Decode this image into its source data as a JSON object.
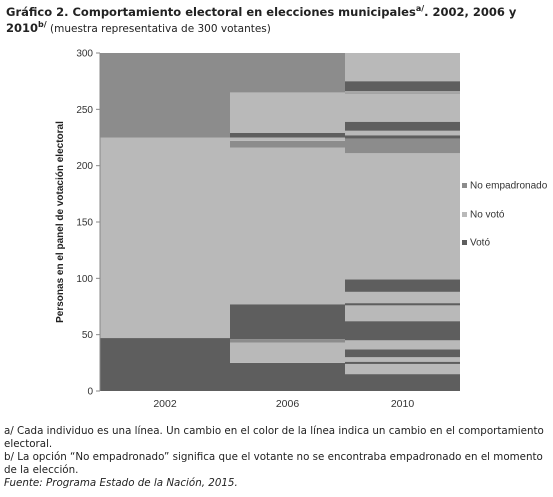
{
  "title": {
    "bold_text": "Gráfico 2. Comportamiento electoral en elecciones municipales",
    "sup_a": "a/",
    "bold_text_2": ". 2002, 2006 y 2010",
    "sup_b": "b/",
    "subtitle": " (muestra representativa de 300 votantes)"
  },
  "notes": {
    "note_a": "a/ Cada individuo es una línea. Un cambio en el color de la línea indica un cambio en el comportamiento electoral.",
    "note_b": "b/ La opción “No empadronado” significa que el votante no se encontraba empadronado en el momento de la elección.",
    "source": "Fuente: Programa Estado de la Nación, 2015."
  },
  "colors": {
    "No empadronado": "#8c8c8c",
    "No votó": "#b9b9b9",
    "Votó": "#5e5e5e"
  },
  "chart_data": {
    "type": "bar",
    "stacked": true,
    "title": "Gráfico 2. Comportamiento electoral en elecciones municipales. 2002, 2006 y 2010",
    "ylabel": "Personas en el panel de votación electoral",
    "ylim": [
      0,
      300
    ],
    "yticks": [
      0,
      50,
      100,
      150,
      200,
      250,
      300
    ],
    "categories": [
      "2002",
      "2006",
      "2010"
    ],
    "legend": [
      "No empadronado",
      "No votó",
      "Votó"
    ],
    "legend_position": "right",
    "columns": [
      {
        "year": "2002",
        "segments": [
          {
            "category": "Votó",
            "from": 0,
            "to": 47
          },
          {
            "category": "No votó",
            "from": 47,
            "to": 225
          },
          {
            "category": "No empadronado",
            "from": 225,
            "to": 300
          }
        ]
      },
      {
        "year": "2006",
        "segments": [
          {
            "category": "Votó",
            "from": 0,
            "to": 25
          },
          {
            "category": "No votó",
            "from": 25,
            "to": 43
          },
          {
            "category": "No empadronado",
            "from": 43,
            "to": 46
          },
          {
            "category": "Votó",
            "from": 46,
            "to": 77
          },
          {
            "category": "No votó",
            "from": 77,
            "to": 216
          },
          {
            "category": "No empadronado",
            "from": 216,
            "to": 222
          },
          {
            "category": "No votó",
            "from": 222,
            "to": 225
          },
          {
            "category": "Votó",
            "from": 225,
            "to": 229
          },
          {
            "category": "No votó",
            "from": 229,
            "to": 265
          },
          {
            "category": "No empadronado",
            "from": 265,
            "to": 300
          }
        ]
      },
      {
        "year": "2010",
        "segments": [
          {
            "category": "Votó",
            "from": 0,
            "to": 15
          },
          {
            "category": "No votó",
            "from": 15,
            "to": 24
          },
          {
            "category": "Votó",
            "from": 24,
            "to": 26
          },
          {
            "category": "No votó",
            "from": 26,
            "to": 30
          },
          {
            "category": "Votó",
            "from": 30,
            "to": 37
          },
          {
            "category": "No votó",
            "from": 37,
            "to": 45
          },
          {
            "category": "Votó",
            "from": 45,
            "to": 62
          },
          {
            "category": "No votó",
            "from": 62,
            "to": 76
          },
          {
            "category": "Votó",
            "from": 76,
            "to": 78
          },
          {
            "category": "No votó",
            "from": 78,
            "to": 88
          },
          {
            "category": "Votó",
            "from": 88,
            "to": 99
          },
          {
            "category": "No votó",
            "from": 99,
            "to": 211
          },
          {
            "category": "No empadronado",
            "from": 211,
            "to": 224
          },
          {
            "category": "Votó",
            "from": 224,
            "to": 227
          },
          {
            "category": "No votó",
            "from": 227,
            "to": 231
          },
          {
            "category": "Votó",
            "from": 231,
            "to": 239
          },
          {
            "category": "No votó",
            "from": 239,
            "to": 264
          },
          {
            "category": "No empadronado",
            "from": 264,
            "to": 265
          },
          {
            "category": "No votó",
            "from": 265,
            "to": 266
          },
          {
            "category": "Votó",
            "from": 266,
            "to": 275
          },
          {
            "category": "No votó",
            "from": 275,
            "to": 300
          }
        ]
      }
    ]
  }
}
